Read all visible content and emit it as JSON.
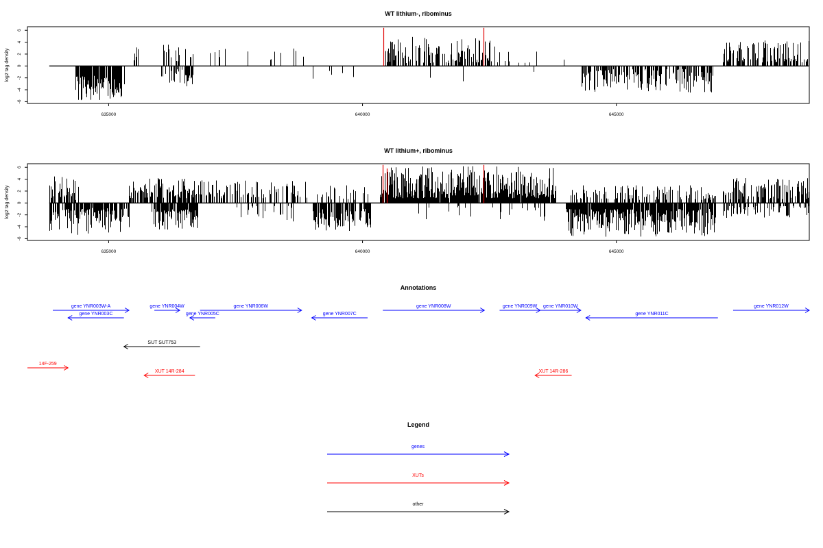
{
  "chart_data": [
    {
      "type": "bar",
      "title": "WT lithium-, ribominus",
      "ylabel": "log2 tag density",
      "xlabel": "",
      "xlim": [
        633400,
        648800
      ],
      "ylim": [
        -6.3,
        6.6
      ],
      "xticks": [
        635000,
        640000,
        645000
      ],
      "xtick_labels": [
        "635000",
        "640000",
        "645000"
      ],
      "yticks": [
        -6,
        -4,
        -2,
        0,
        2,
        4,
        6
      ],
      "ytick_labels": [
        "-6",
        "-4",
        "-2",
        "0",
        "2",
        "4",
        "6"
      ],
      "x_start": 633830,
      "x_end": 648790,
      "colors": {
        "bars": "#000000",
        "highlight": "#e00000",
        "frame": "#000000"
      },
      "highlights": [
        {
          "x": 640410,
          "value": 6.4
        },
        {
          "x": 642380,
          "value": 6.4
        }
      ],
      "segments": [
        {
          "from": 633830,
          "to": 634320,
          "density": 0.05,
          "sign": -1,
          "min": 0.4,
          "max": 2.5
        },
        {
          "from": 634350,
          "to": 635300,
          "density": 0.92,
          "sign": -1,
          "min": 1.5,
          "max": 5.8
        },
        {
          "from": 635500,
          "to": 635600,
          "density": 0.3,
          "sign": 1,
          "min": 0.8,
          "max": 3.3
        },
        {
          "from": 635850,
          "to": 636450,
          "density": 0.3,
          "sign": -1,
          "min": 0.5,
          "max": 3.0
        },
        {
          "from": 635900,
          "to": 636700,
          "density": 0.22,
          "sign": 1,
          "min": 0.8,
          "max": 3.7
        },
        {
          "from": 636500,
          "to": 636650,
          "density": 0.7,
          "sign": -1,
          "min": 1.5,
          "max": 3.6
        },
        {
          "from": 637000,
          "to": 638900,
          "density": 0.1,
          "sign": 1,
          "min": 0.8,
          "max": 3.0
        },
        {
          "from": 638900,
          "to": 640000,
          "density": 0.07,
          "sign": -1,
          "min": 0.5,
          "max": 3.2
        },
        {
          "from": 640430,
          "to": 642500,
          "density": 0.6,
          "sign": 1,
          "min": 0.5,
          "max": 4.9
        },
        {
          "from": 641200,
          "to": 642300,
          "density": 0.05,
          "sign": -1,
          "min": 0.5,
          "max": 3.0
        },
        {
          "from": 642500,
          "to": 643450,
          "density": 0.15,
          "sign": 1,
          "min": 0.5,
          "max": 3.3
        },
        {
          "from": 643000,
          "to": 643450,
          "density": 0.05,
          "sign": -1,
          "min": 0.5,
          "max": 2.8
        },
        {
          "from": 643600,
          "to": 644100,
          "density": 0.04,
          "sign": 1,
          "min": 1.0,
          "max": 3.2
        },
        {
          "from": 644300,
          "to": 646950,
          "density": 0.52,
          "sign": -1,
          "min": 0.5,
          "max": 4.5
        },
        {
          "from": 647100,
          "to": 648790,
          "density": 0.62,
          "sign": 1,
          "min": 0.6,
          "max": 4.3
        }
      ]
    },
    {
      "type": "bar",
      "title": "WT lithium+, ribominus",
      "ylabel": "log2 tag density",
      "xlabel": "",
      "xlim": [
        633400,
        648800
      ],
      "ylim": [
        -6.3,
        6.6
      ],
      "xticks": [
        635000,
        640000,
        645000
      ],
      "xtick_labels": [
        "635000",
        "640000",
        "645000"
      ],
      "yticks": [
        -6,
        -4,
        -2,
        0,
        2,
        4,
        6
      ],
      "ytick_labels": [
        "-6",
        "-4",
        "-2",
        "0",
        "2",
        "4",
        "6"
      ],
      "x_start": 633830,
      "x_end": 648790,
      "colors": {
        "bars": "#000000",
        "highlight": "#e00000",
        "frame": "#000000"
      },
      "highlights": [
        {
          "x": 640400,
          "value": 6.4
        },
        {
          "x": 640480,
          "value": 5.8
        },
        {
          "x": 642380,
          "value": 6.4
        }
      ],
      "segments": [
        {
          "from": 633830,
          "to": 634400,
          "density": 0.45,
          "sign": 1,
          "min": 0.5,
          "max": 4.5
        },
        {
          "from": 633830,
          "to": 635400,
          "density": 0.75,
          "sign": -1,
          "min": 0.8,
          "max": 5.5
        },
        {
          "from": 635400,
          "to": 636800,
          "density": 0.55,
          "sign": 1,
          "min": 0.8,
          "max": 4.2
        },
        {
          "from": 635850,
          "to": 636750,
          "density": 0.85,
          "sign": -1,
          "min": 1.0,
          "max": 4.8
        },
        {
          "from": 636800,
          "to": 638900,
          "density": 0.5,
          "sign": 1,
          "min": 0.8,
          "max": 3.8
        },
        {
          "from": 637500,
          "to": 638700,
          "density": 0.25,
          "sign": -1,
          "min": 0.5,
          "max": 3.4
        },
        {
          "from": 639000,
          "to": 640150,
          "density": 0.8,
          "sign": -1,
          "min": 1.0,
          "max": 4.8
        },
        {
          "from": 639100,
          "to": 640100,
          "density": 0.3,
          "sign": 1,
          "min": 0.5,
          "max": 3.0
        },
        {
          "from": 640350,
          "to": 643800,
          "density": 0.98,
          "sign": 1,
          "min": 0.8,
          "max": 6.2
        },
        {
          "from": 641000,
          "to": 643800,
          "density": 0.1,
          "sign": -1,
          "min": 0.5,
          "max": 3.0
        },
        {
          "from": 643800,
          "to": 644300,
          "density": 0.25,
          "sign": 1,
          "min": 0.5,
          "max": 3.0
        },
        {
          "from": 644000,
          "to": 646950,
          "density": 0.95,
          "sign": -1,
          "min": 1.0,
          "max": 5.7
        },
        {
          "from": 644300,
          "to": 646950,
          "density": 0.45,
          "sign": 1,
          "min": 0.5,
          "max": 3.0
        },
        {
          "from": 647100,
          "to": 648790,
          "density": 0.65,
          "sign": 1,
          "min": 0.6,
          "max": 4.3
        },
        {
          "from": 647100,
          "to": 648790,
          "density": 0.4,
          "sign": -1,
          "min": 0.5,
          "max": 2.6
        }
      ]
    }
  ],
  "annotations": {
    "title": "Annotations",
    "xlim": [
      633400,
      648800
    ],
    "features": [
      {
        "label": "gene YNR003W-A",
        "type": "gene",
        "start": 633900,
        "end": 635400,
        "strand": "+",
        "row": 0
      },
      {
        "label": "gene YNR003C",
        "type": "gene",
        "start": 634200,
        "end": 635300,
        "strand": "-",
        "row": 1
      },
      {
        "label": "gene YNR004W",
        "type": "gene",
        "start": 635900,
        "end": 636400,
        "strand": "+",
        "row": 0
      },
      {
        "label": "gene YNR005C",
        "type": "gene",
        "start": 636600,
        "end": 637100,
        "strand": "-",
        "row": 1
      },
      {
        "label": "gene YNR006W",
        "type": "gene",
        "start": 636800,
        "end": 638800,
        "strand": "+",
        "row": 0
      },
      {
        "label": "gene YNR007C",
        "type": "gene",
        "start": 639000,
        "end": 640100,
        "strand": "-",
        "row": 1
      },
      {
        "label": "gene YNR008W",
        "type": "gene",
        "start": 640400,
        "end": 642400,
        "strand": "+",
        "row": 0
      },
      {
        "label": "gene YNR009W",
        "type": "gene",
        "start": 642700,
        "end": 643500,
        "strand": "+",
        "row": 0
      },
      {
        "label": "gene YNR010W",
        "type": "gene",
        "start": 643500,
        "end": 644300,
        "strand": "+",
        "row": 0
      },
      {
        "label": "gene YNR011C",
        "type": "gene",
        "start": 644400,
        "end": 647000,
        "strand": "-",
        "row": 1
      },
      {
        "label": "gene YNR012W",
        "type": "gene",
        "start": 647300,
        "end": 648800,
        "strand": "+",
        "row": 0
      },
      {
        "label": "SUT SUT753",
        "type": "other",
        "start": 635300,
        "end": 636800,
        "strand": "-",
        "row": 3
      },
      {
        "label": "14F-259",
        "type": "xut",
        "start": 633400,
        "end": 634200,
        "strand": "+",
        "row": 4
      },
      {
        "label": "XUT 14R-284",
        "type": "xut",
        "start": 635700,
        "end": 636700,
        "strand": "-",
        "row": 5
      },
      {
        "label": "XUT 14R-286",
        "type": "xut",
        "start": 643400,
        "end": 644120,
        "strand": "-",
        "row": 5
      }
    ]
  },
  "legend": {
    "title": "Legend",
    "items": [
      {
        "label": "genes",
        "color": "#0000ff"
      },
      {
        "label": "XUTs",
        "color": "#ff0000"
      },
      {
        "label": "other",
        "color": "#000000"
      }
    ]
  }
}
